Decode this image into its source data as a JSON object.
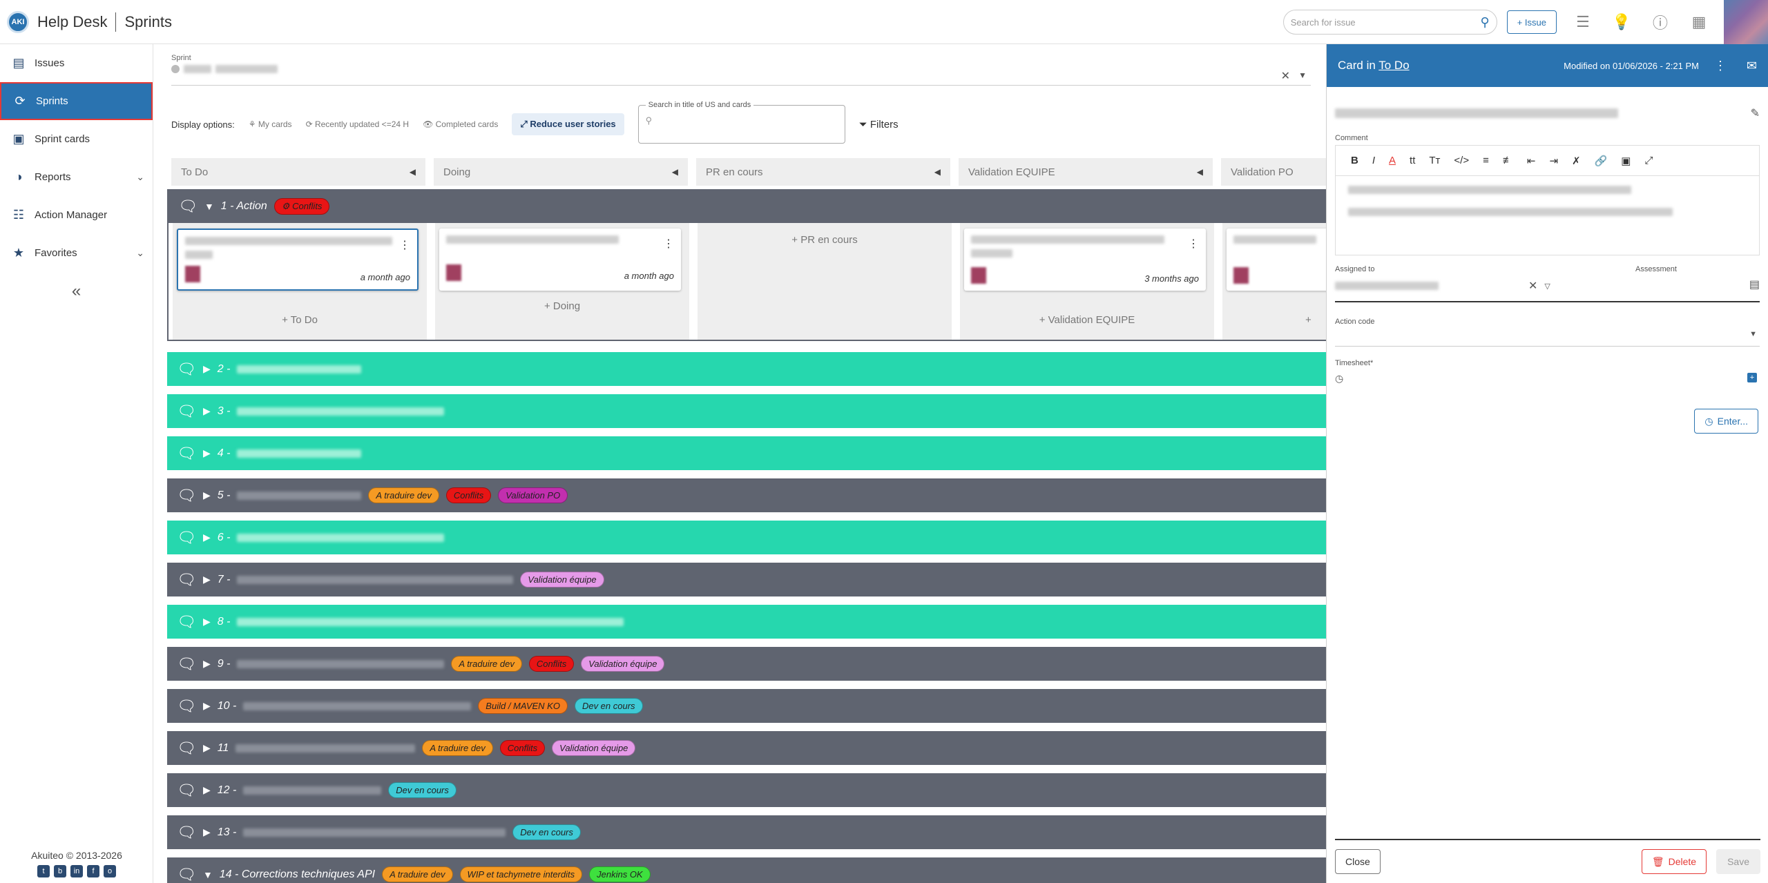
{
  "header": {
    "brand": "Help Desk",
    "section": "Sprints",
    "logo_text": "AKI",
    "search_placeholder": "Search for issue",
    "add_issue_label": "+ Issue"
  },
  "sidebar": {
    "items": [
      {
        "label": "Issues",
        "icon": "issues-icon"
      },
      {
        "label": "Sprints",
        "icon": "sprint-icon"
      },
      {
        "label": "Sprint cards",
        "icon": "cards-icon"
      },
      {
        "label": "Reports",
        "icon": "reports-icon"
      },
      {
        "label": "Action Manager",
        "icon": "action-manager-icon"
      },
      {
        "label": "Favorites",
        "icon": "star-icon"
      }
    ],
    "collapse": "«",
    "footer": "Akuiteo © 2013-2026"
  },
  "main": {
    "sprint_label": "Sprint",
    "display_options_label": "Display options:",
    "options": [
      "My cards",
      "Recently updated <=24 H",
      "Completed cards"
    ],
    "reduce_label": "Reduce user stories",
    "search_label": "Search in title of US and cards",
    "filters_label": "Filters",
    "columns": [
      "To Do",
      "Doing",
      "PR en cours",
      "Validation EQUIPE",
      "Validation PO"
    ]
  },
  "expanded": {
    "title": "1 - Action",
    "tag": "Conflits",
    "cards": [
      {
        "ago": "a month ago"
      },
      {
        "ago": "a month ago"
      },
      {
        "ago": "3 months ago"
      }
    ],
    "add_labels": [
      "+ To Do",
      "+ Doing",
      "+ PR en cours",
      "+ Validation EQUIPE",
      "+"
    ]
  },
  "groups": [
    {
      "num": "2 -",
      "style": "green",
      "tags": []
    },
    {
      "num": "3 -",
      "style": "green",
      "tags": []
    },
    {
      "num": "4 -",
      "style": "green",
      "tags": []
    },
    {
      "num": "5 -",
      "style": "dark",
      "tags": [
        {
          "t": "A traduire dev",
          "c": "orange"
        },
        {
          "t": "Conflits",
          "c": "red"
        },
        {
          "t": "Validation PO",
          "c": "purple"
        }
      ]
    },
    {
      "num": "6 -",
      "style": "green",
      "tags": []
    },
    {
      "num": "7 -",
      "style": "dark",
      "tags": [
        {
          "t": "Validation équipe",
          "c": "violet"
        }
      ]
    },
    {
      "num": "8 -",
      "style": "green",
      "tags": []
    },
    {
      "num": "9 -",
      "style": "dark",
      "tags": [
        {
          "t": "A traduire dev",
          "c": "orange"
        },
        {
          "t": "Conflits",
          "c": "red"
        },
        {
          "t": "Validation équipe",
          "c": "violet"
        }
      ]
    },
    {
      "num": "10 -",
      "style": "dark",
      "tags": [
        {
          "t": "Build / MAVEN KO",
          "c": "orangedk"
        },
        {
          "t": "Dev en cours",
          "c": "cyan"
        }
      ]
    },
    {
      "num": "11",
      "style": "dark",
      "tags": [
        {
          "t": "A traduire dev",
          "c": "orange"
        },
        {
          "t": "Conflits",
          "c": "red"
        },
        {
          "t": "Validation équipe",
          "c": "violet"
        }
      ]
    },
    {
      "num": "12 -",
      "style": "dark",
      "tags": [
        {
          "t": "Dev en cours",
          "c": "cyan"
        }
      ]
    },
    {
      "num": "13 -",
      "style": "dark",
      "tags": [
        {
          "t": "Dev en cours",
          "c": "cyan"
        }
      ]
    },
    {
      "num": "14 - Corrections techniques API",
      "style": "dark",
      "tags": [
        {
          "t": "A traduire dev",
          "c": "orange"
        },
        {
          "t": "WIP et tachymetre interdits",
          "c": "orange"
        },
        {
          "t": "Jenkins OK",
          "c": "lime"
        }
      ]
    }
  ],
  "panel": {
    "title_prefix": "Card in",
    "title_link": "To Do",
    "modified": "Modified on 01/06/2026 - 2:21 PM",
    "comment_label": "Comment",
    "assigned_label": "Assigned to",
    "assessment_label": "Assessment",
    "action_code_label": "Action code",
    "timesheet_label": "Timesheet*",
    "enter_label": "Enter...",
    "close_label": "Close",
    "delete_label": "Delete",
    "save_label": "Save"
  }
}
